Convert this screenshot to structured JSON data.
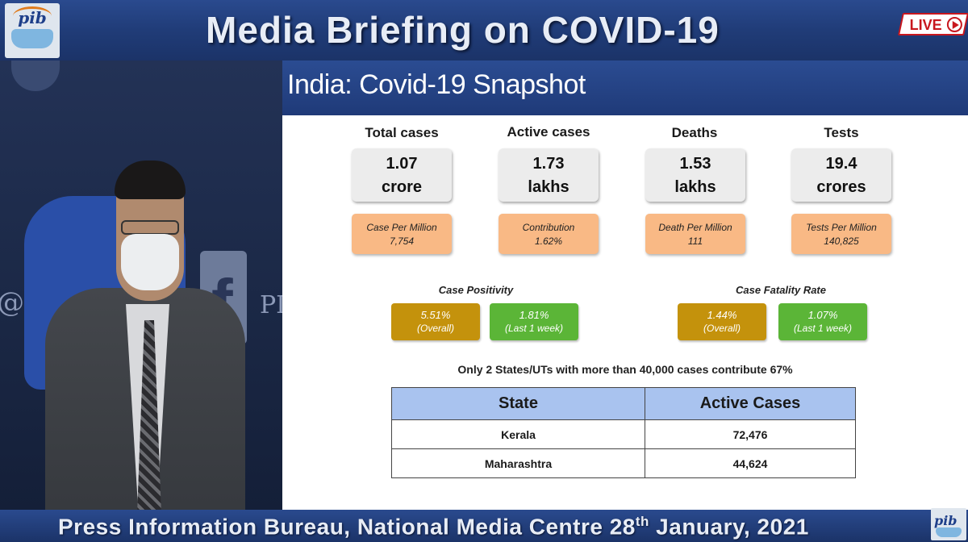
{
  "banner": {
    "title": "Media Briefing on COVID-19",
    "live_label": "LIVE",
    "logo_text": "pib"
  },
  "video": {
    "wall_text_left": "@PII",
    "wall_text_right": "PI"
  },
  "slide": {
    "title": "India: Covid-19 Snapshot",
    "stats": [
      {
        "label": "Total cases",
        "value_line1": "1.07",
        "value_line2": "crore",
        "sub_label": "Case Per Million",
        "sub_value": "7,754"
      },
      {
        "label": "Active cases",
        "value_line1": "1.73",
        "value_line2": "lakhs",
        "sub_label": "Contribution",
        "sub_value": "1.62%"
      },
      {
        "label": "Deaths",
        "value_line1": "1.53",
        "value_line2": "lakhs",
        "sub_label": "Death Per Million",
        "sub_value": "111"
      },
      {
        "label": "Tests",
        "value_line1": "19.4",
        "value_line2": "crores",
        "sub_label": "Tests Per Million",
        "sub_value": "140,825"
      }
    ],
    "case_positivity": {
      "label": "Case Positivity",
      "overall": {
        "value": "5.51%",
        "desc": "(Overall)"
      },
      "last_week": {
        "value": "1.81%",
        "desc": "(Last 1 week)"
      }
    },
    "case_fatality": {
      "label": "Case Fatality Rate",
      "overall": {
        "value": "1.44%",
        "desc": "(Overall)"
      },
      "last_week": {
        "value": "1.07%",
        "desc": "(Last 1 week)"
      }
    },
    "table_note": "Only 2 States/UTs with more than 40,000 cases contribute 67%",
    "table": {
      "headers": [
        "State",
        "Active Cases"
      ],
      "rows": [
        {
          "state": "Kerala",
          "cases": "72,476"
        },
        {
          "state": "Maharashtra",
          "cases": "44,624"
        }
      ]
    }
  },
  "footer": {
    "text_main": "Press Information Bureau, National Media Centre  28",
    "text_sup": "th",
    "text_end": " January, 2021",
    "logo_text": "pib"
  },
  "colors": {
    "banner_blue": "#203c78",
    "sub_box_orange": "#f9b985",
    "rate_gold": "#c4920c",
    "rate_green": "#5bb537",
    "table_header": "#a9c3ef",
    "live_red": "#c8171e"
  }
}
